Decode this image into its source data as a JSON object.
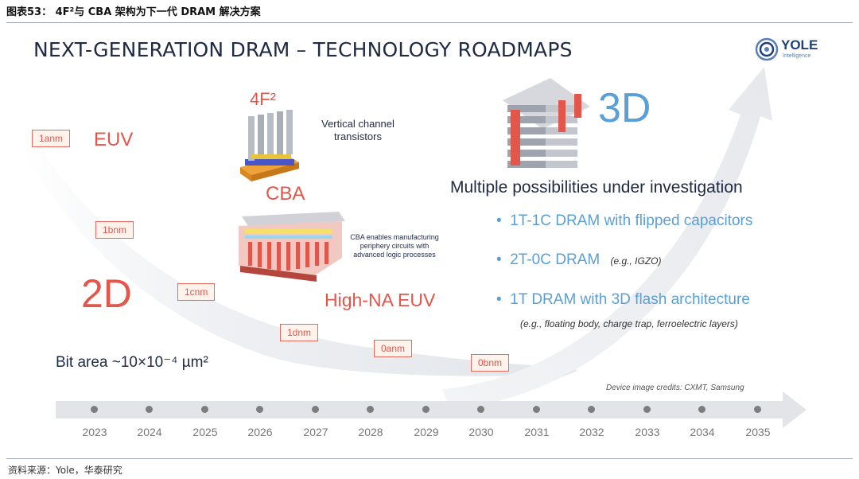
{
  "caption": "图表53：  4F²与 CBA 架构为下一代 DRAM 解决方案",
  "source": "资料来源：Yole，华泰研究",
  "slide": {
    "title": "NEXT-GENERATION DRAM – TECHNOLOGY ROADMAPS",
    "logo": {
      "name": "YOLE",
      "sub": "Intelligence"
    },
    "nodes": [
      "1anm",
      "1bnm",
      "1cnm",
      "1dnm",
      "0anm",
      "0bnm"
    ],
    "euv": "EUV",
    "label_2d": "2D",
    "bit_area": "Bit area ~10×10⁻⁴ µm²",
    "f2": "4F²",
    "vertical_channel": [
      "Vertical channel",
      "transistors"
    ],
    "cba": "CBA",
    "cba_note": [
      "CBA enables manufacturing",
      "periphery circuits with",
      "advanced logic processes"
    ],
    "high_na": "High-NA EUV",
    "label_3d": "3D",
    "possibilities_title": "Multiple possibilities under investigation",
    "bullets": [
      {
        "text": "1T-1C DRAM with flipped capacitors",
        "note": ""
      },
      {
        "text": "2T-0C DRAM",
        "note": "(e.g., IGZO)"
      },
      {
        "text": "1T DRAM with 3D flash architecture",
        "note": ""
      }
    ],
    "bullet3_note": "(e.g., floating body, charge trap, ferroelectric layers)",
    "credits": "Device image credits: CXMT, Samsung",
    "years": [
      "2023",
      "2024",
      "2025",
      "2026",
      "2027",
      "2028",
      "2029",
      "2030",
      "2031",
      "2032",
      "2033",
      "2034",
      "2035"
    ],
    "colors": {
      "red": "#e2564c",
      "blue": "#5aa0d6",
      "navy": "#1f2a44"
    }
  }
}
